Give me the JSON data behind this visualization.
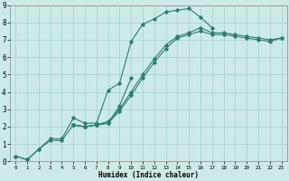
{
  "xlabel": "Humidex (Indice chaleur)",
  "bg_color": "#cceae8",
  "grid_color": "#aad4d0",
  "line_color": "#2d7d6e",
  "xlim": [
    -0.5,
    23.5
  ],
  "ylim": [
    0,
    9
  ],
  "lines": [
    {
      "x": [
        0,
        1,
        2,
        3,
        4,
        5,
        6,
        7,
        8,
        9,
        10,
        11,
        12,
        13,
        14,
        15,
        16,
        17
      ],
      "y": [
        0.3,
        0.1,
        0.7,
        1.3,
        1.3,
        2.5,
        2.2,
        2.2,
        4.1,
        4.5,
        6.9,
        7.9,
        8.2,
        8.6,
        8.7,
        8.8,
        8.3,
        7.7
      ]
    },
    {
      "x": [
        0,
        1,
        2,
        3,
        4,
        5,
        6,
        7,
        8,
        9,
        10
      ],
      "y": [
        0.3,
        0.1,
        0.7,
        1.2,
        1.2,
        2.1,
        2.0,
        2.1,
        2.2,
        3.2,
        4.8
      ]
    },
    {
      "x": [
        5,
        6,
        7,
        8,
        9,
        10,
        11,
        12,
        13,
        14,
        15,
        16,
        17,
        18,
        19,
        20,
        21,
        22,
        23
      ],
      "y": [
        2.1,
        2.0,
        2.1,
        2.2,
        2.9,
        3.8,
        4.8,
        5.7,
        6.5,
        7.1,
        7.3,
        7.5,
        7.3,
        7.3,
        7.2,
        7.1,
        7.0,
        6.9,
        7.1
      ]
    },
    {
      "x": [
        5,
        6,
        7,
        8,
        9,
        10,
        11,
        12,
        13,
        14,
        15,
        16,
        17,
        18,
        19,
        20,
        21,
        22,
        23
      ],
      "y": [
        2.1,
        2.0,
        2.1,
        2.3,
        3.0,
        4.0,
        5.0,
        5.9,
        6.7,
        7.2,
        7.4,
        7.7,
        7.4,
        7.4,
        7.3,
        7.2,
        7.1,
        7.0,
        7.1
      ]
    }
  ],
  "xticks": [
    0,
    1,
    2,
    3,
    4,
    5,
    6,
    7,
    8,
    9,
    10,
    11,
    12,
    13,
    14,
    15,
    16,
    17,
    18,
    19,
    20,
    21,
    22,
    23
  ],
  "yticks": [
    0,
    1,
    2,
    3,
    4,
    5,
    6,
    7,
    8,
    9
  ]
}
